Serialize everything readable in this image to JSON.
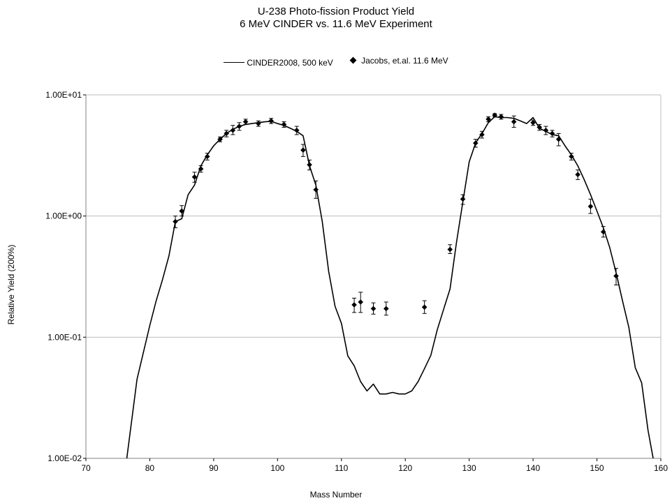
{
  "chart_data": {
    "type": "line",
    "title": "U-238 Photo-fission Product Yield",
    "subtitle": "6 MeV CINDER vs. 11.6 MeV Experiment",
    "xlabel": "Mass Number",
    "ylabel": "Relative Yield (200%)",
    "xlim": [
      70,
      160
    ],
    "ylim": [
      0.01,
      10
    ],
    "y_scale": "log",
    "x_ticks": [
      70,
      80,
      90,
      100,
      110,
      120,
      130,
      140,
      150,
      160
    ],
    "x_tick_labels": [
      "70",
      "80",
      "90",
      "100",
      "110",
      "120",
      "130",
      "140",
      "150",
      "160"
    ],
    "y_ticks": [
      0.01,
      0.1,
      1,
      10
    ],
    "y_tick_labels": [
      "1.00E-02",
      "1.00E-01",
      "1.00E+00",
      "1.00E+01"
    ],
    "grid": "horizontal",
    "legend_position": "top",
    "series": [
      {
        "name": "CINDER2008, 500 keV",
        "kind": "line",
        "color": "#000000",
        "x": [
          76.4,
          78,
          79,
          80,
          81,
          82,
          83,
          84,
          85,
          86,
          87,
          88,
          89,
          90,
          91,
          92,
          93,
          94,
          95,
          96,
          97,
          98,
          99,
          100,
          101,
          102,
          103,
          104,
          105,
          106,
          107,
          108,
          109,
          110,
          111,
          112,
          113,
          114,
          115,
          116,
          117,
          118,
          119,
          120,
          121,
          122,
          123,
          124,
          125,
          126,
          127,
          128,
          129,
          130,
          131,
          132,
          133,
          134,
          135,
          136,
          137,
          138,
          139,
          140,
          141,
          142,
          143,
          144,
          145,
          146,
          147,
          148,
          149,
          150,
          151,
          152,
          153,
          154,
          155,
          156,
          157,
          158,
          158.8
        ],
        "y": [
          0.01,
          0.045,
          0.075,
          0.125,
          0.2,
          0.3,
          0.47,
          0.9,
          0.95,
          1.5,
          1.8,
          2.6,
          3.2,
          3.8,
          4.3,
          4.8,
          5.2,
          5.5,
          5.7,
          5.8,
          5.9,
          6.0,
          6.05,
          5.8,
          5.6,
          5.3,
          5.0,
          4.6,
          2.6,
          1.8,
          0.9,
          0.35,
          0.18,
          0.13,
          0.07,
          0.058,
          0.043,
          0.036,
          0.041,
          0.034,
          0.034,
          0.035,
          0.034,
          0.034,
          0.036,
          0.043,
          0.055,
          0.071,
          0.115,
          0.17,
          0.25,
          0.6,
          1.3,
          2.8,
          4.0,
          4.8,
          5.9,
          6.6,
          6.5,
          6.5,
          6.4,
          6.1,
          5.8,
          6.5,
          5.3,
          5.0,
          4.7,
          4.6,
          3.8,
          3.2,
          2.6,
          2.0,
          1.5,
          1.1,
          0.8,
          0.55,
          0.34,
          0.2,
          0.12,
          0.056,
          0.042,
          0.017,
          0.01
        ]
      },
      {
        "name": "Jacobs, et.al. 11.6 MeV",
        "kind": "scatter",
        "marker": "diamond",
        "color": "#000000",
        "points": [
          {
            "x": 84,
            "y": 0.9,
            "lo": 0.8,
            "hi": 1.0
          },
          {
            "x": 85,
            "y": 1.1,
            "lo": 1.0,
            "hi": 1.22
          },
          {
            "x": 87,
            "y": 2.1,
            "lo": 1.9,
            "hi": 2.3
          },
          {
            "x": 88,
            "y": 2.45,
            "lo": 2.3,
            "hi": 2.6
          },
          {
            "x": 89,
            "y": 3.1,
            "lo": 2.9,
            "hi": 3.3
          },
          {
            "x": 91,
            "y": 4.3,
            "lo": 4.1,
            "hi": 4.5
          },
          {
            "x": 92,
            "y": 4.8,
            "lo": 4.5,
            "hi": 5.1
          },
          {
            "x": 93,
            "y": 5.1,
            "lo": 4.7,
            "hi": 5.6
          },
          {
            "x": 94,
            "y": 5.5,
            "lo": 5.1,
            "hi": 5.9
          },
          {
            "x": 95,
            "y": 6.0,
            "lo": 5.7,
            "hi": 6.3
          },
          {
            "x": 97,
            "y": 5.8,
            "lo": 5.5,
            "hi": 6.1
          },
          {
            "x": 99,
            "y": 6.1,
            "lo": 5.8,
            "hi": 6.4
          },
          {
            "x": 101,
            "y": 5.7,
            "lo": 5.4,
            "hi": 6.0
          },
          {
            "x": 103,
            "y": 5.1,
            "lo": 4.7,
            "hi": 5.5
          },
          {
            "x": 104,
            "y": 3.5,
            "lo": 3.1,
            "hi": 3.9
          },
          {
            "x": 105,
            "y": 2.65,
            "lo": 2.4,
            "hi": 2.9
          },
          {
            "x": 106,
            "y": 1.65,
            "lo": 1.4,
            "hi": 1.95
          },
          {
            "x": 112,
            "y": 0.185,
            "lo": 0.16,
            "hi": 0.21
          },
          {
            "x": 113,
            "y": 0.195,
            "lo": 0.16,
            "hi": 0.235
          },
          {
            "x": 115,
            "y": 0.172,
            "lo": 0.155,
            "hi": 0.192
          },
          {
            "x": 117,
            "y": 0.172,
            "lo": 0.152,
            "hi": 0.195
          },
          {
            "x": 123,
            "y": 0.177,
            "lo": 0.157,
            "hi": 0.2
          },
          {
            "x": 127,
            "y": 0.53,
            "lo": 0.49,
            "hi": 0.58
          },
          {
            "x": 129,
            "y": 1.38,
            "lo": 1.25,
            "hi": 1.5
          },
          {
            "x": 131,
            "y": 4.0,
            "lo": 3.7,
            "hi": 4.3
          },
          {
            "x": 132,
            "y": 4.7,
            "lo": 4.4,
            "hi": 5.0
          },
          {
            "x": 133,
            "y": 6.3,
            "lo": 6.0,
            "hi": 6.6
          },
          {
            "x": 134,
            "y": 6.8,
            "lo": 6.6,
            "hi": 7.0
          },
          {
            "x": 135,
            "y": 6.6,
            "lo": 6.3,
            "hi": 6.9
          },
          {
            "x": 137,
            "y": 6.0,
            "lo": 5.4,
            "hi": 6.7
          },
          {
            "x": 140,
            "y": 5.9,
            "lo": 5.6,
            "hi": 6.2
          },
          {
            "x": 141,
            "y": 5.4,
            "lo": 5.1,
            "hi": 5.7
          },
          {
            "x": 142,
            "y": 5.1,
            "lo": 4.7,
            "hi": 5.5
          },
          {
            "x": 143,
            "y": 4.8,
            "lo": 4.5,
            "hi": 5.1
          },
          {
            "x": 144,
            "y": 4.3,
            "lo": 3.8,
            "hi": 4.8
          },
          {
            "x": 146,
            "y": 3.1,
            "lo": 2.9,
            "hi": 3.3
          },
          {
            "x": 147,
            "y": 2.2,
            "lo": 2.0,
            "hi": 2.4
          },
          {
            "x": 149,
            "y": 1.2,
            "lo": 1.05,
            "hi": 1.38
          },
          {
            "x": 151,
            "y": 0.74,
            "lo": 0.67,
            "hi": 0.82
          },
          {
            "x": 153,
            "y": 0.32,
            "lo": 0.27,
            "hi": 0.37
          }
        ]
      }
    ]
  }
}
